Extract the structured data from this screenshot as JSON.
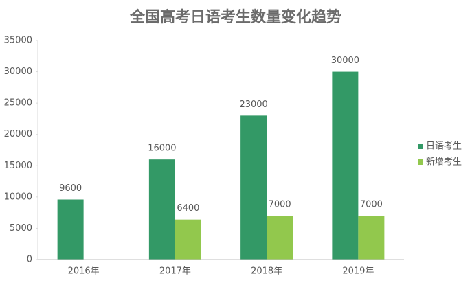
{
  "chart_data": {
    "type": "bar",
    "title": "全国高考日语考生数量变化趋势",
    "categories": [
      "2016年",
      "2017年",
      "2018年",
      "2019年"
    ],
    "series": [
      {
        "name": "日语考生",
        "color": "#339966",
        "values": [
          9600,
          16000,
          23000,
          30000
        ]
      },
      {
        "name": "新增考生",
        "color": "#92c84d",
        "values": [
          null,
          6400,
          7000,
          7000
        ]
      }
    ],
    "ylim": [
      0,
      35000
    ],
    "yticks": [
      0,
      5000,
      10000,
      15000,
      20000,
      25000,
      30000,
      35000
    ],
    "grid": false,
    "legend": "right",
    "data_labels": true
  }
}
